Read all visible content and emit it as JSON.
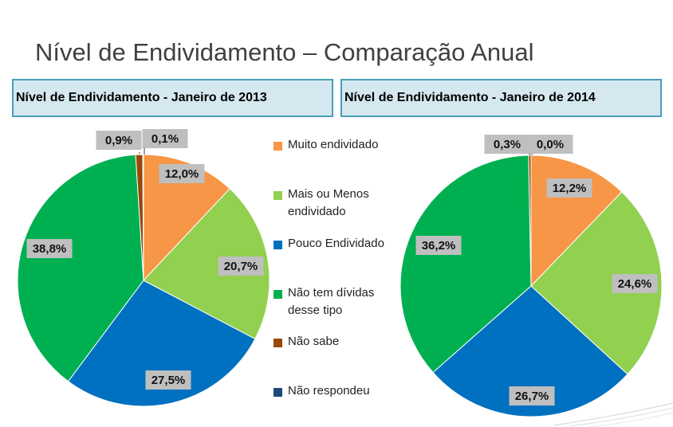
{
  "page_title": "Nível de Endividamento – Comparação Anual",
  "legend": [
    {
      "label": "Muito endividado",
      "color": "#f79646"
    },
    {
      "label": "Mais ou Menos endividado",
      "color": "#92d050"
    },
    {
      "label": "Pouco Endividado",
      "color": "#0070c0"
    },
    {
      "label": "Não tem dívidas desse tipo",
      "color": "#00b050"
    },
    {
      "label": "Não sabe",
      "color": "#984807"
    },
    {
      "label": "Não respondeu",
      "color": "#1f497d"
    }
  ],
  "chart_data": [
    {
      "type": "pie",
      "title": "Nível de Endividamento -  Janeiro de 2013",
      "categories": [
        "Muito endividado",
        "Mais ou Menos endividado",
        "Pouco Endividado",
        "Não tem dívidas desse tipo",
        "Não sabe",
        "Não respondeu"
      ],
      "values": [
        12.0,
        20.7,
        27.5,
        38.8,
        0.9,
        0.1
      ],
      "labels": [
        "12,0%",
        "20,7%",
        "27,5%",
        "38,8%",
        "0,9%",
        "0,1%"
      ],
      "start_angle_deg": 0,
      "direction": "clockwise"
    },
    {
      "type": "pie",
      "title": "Nível de Endividamento -  Janeiro de 2014",
      "categories": [
        "Muito endividado",
        "Mais ou Menos endividado",
        "Pouco Endividado",
        "Não tem dívidas desse tipo",
        "Não sabe",
        "Não respondeu"
      ],
      "values": [
        12.2,
        24.6,
        26.7,
        36.2,
        0.3,
        0.0
      ],
      "labels": [
        "12,2%",
        "24,6%",
        "26,7%",
        "36,2%",
        "0,3%",
        "0,0%"
      ],
      "start_angle_deg": 0,
      "direction": "clockwise"
    }
  ]
}
